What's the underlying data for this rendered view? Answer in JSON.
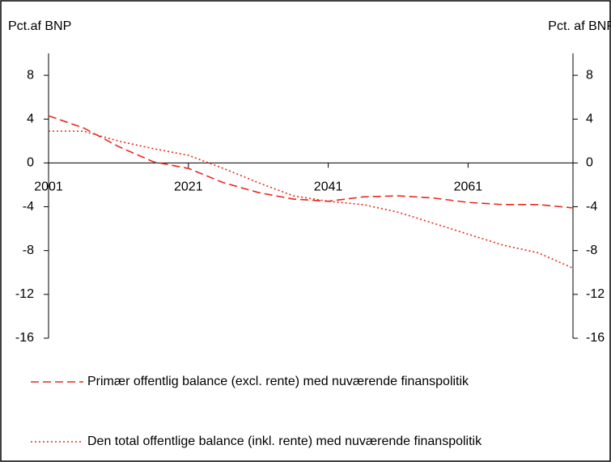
{
  "chart_data": {
    "type": "line",
    "ylabel": "Pct.af BNP",
    "y2label": "Pct. af BNP",
    "x": [
      2001,
      2006,
      2011,
      2016,
      2021,
      2026,
      2031,
      2036,
      2041,
      2046,
      2051,
      2056,
      2061,
      2066,
      2071,
      2076
    ],
    "series": [
      {
        "name": "Primær offentlig balance (excl. rente) med nuværende finanspolitik",
        "color": "#e8281e",
        "style": "dashed",
        "values": [
          4.3,
          3.2,
          1.5,
          0.1,
          -0.5,
          -1.8,
          -2.7,
          -3.3,
          -3.5,
          -3.1,
          -3.0,
          -3.2,
          -3.6,
          -3.8,
          -3.8,
          -4.1
        ]
      },
      {
        "name": "Den total offentlige balance (inkl. rente) med nuværende finanspolitik",
        "color": "#e8281e",
        "style": "dotted",
        "values": [
          2.9,
          2.9,
          2.0,
          1.3,
          0.7,
          -0.5,
          -1.8,
          -3.0,
          -3.5,
          -3.8,
          -4.5,
          -5.5,
          -6.5,
          -7.5,
          -8.2,
          -9.6
        ]
      }
    ],
    "xlim": [
      2001,
      2076
    ],
    "xticks": [
      2001,
      2021,
      2041,
      2061
    ],
    "ylim": [
      -16,
      10
    ],
    "yticks": [
      8,
      4,
      0,
      -4,
      -8,
      -12,
      -16
    ],
    "y2lim": [
      -16,
      10
    ],
    "y2ticks": [
      8,
      4,
      0,
      -4,
      -8,
      -12,
      -16
    ],
    "legend": "bottom"
  }
}
